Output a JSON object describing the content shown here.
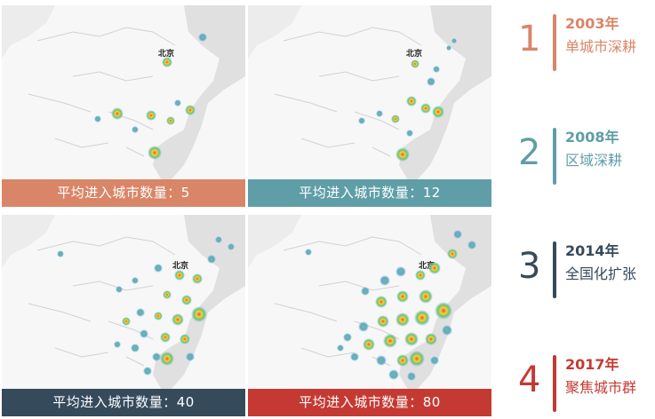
{
  "panels": [
    {
      "caption": "平均进入城市数量：5",
      "color": "#d98567",
      "city_label": "北京"
    },
    {
      "caption": "平均进入城市数量：12",
      "color": "#5f9ea7",
      "city_label": "北京"
    },
    {
      "caption": "平均进入城市数量：40",
      "color": "#354a5b",
      "city_label": "北京"
    },
    {
      "caption": "平均进入城市数量：80",
      "color": "#c43a32",
      "city_label": "北京"
    }
  ],
  "timeline": [
    {
      "num": "1",
      "year": "2003年",
      "desc": "单城市深耕",
      "color": "#d98567"
    },
    {
      "num": "2",
      "year": "2008年",
      "desc": "区域深耕",
      "color": "#5f9ea7"
    },
    {
      "num": "3",
      "year": "2014年",
      "desc": "全国化扩张",
      "color": "#354a5b"
    },
    {
      "num": "4",
      "year": "2017年",
      "desc": "聚焦城市群",
      "color": "#c43a32"
    }
  ]
}
